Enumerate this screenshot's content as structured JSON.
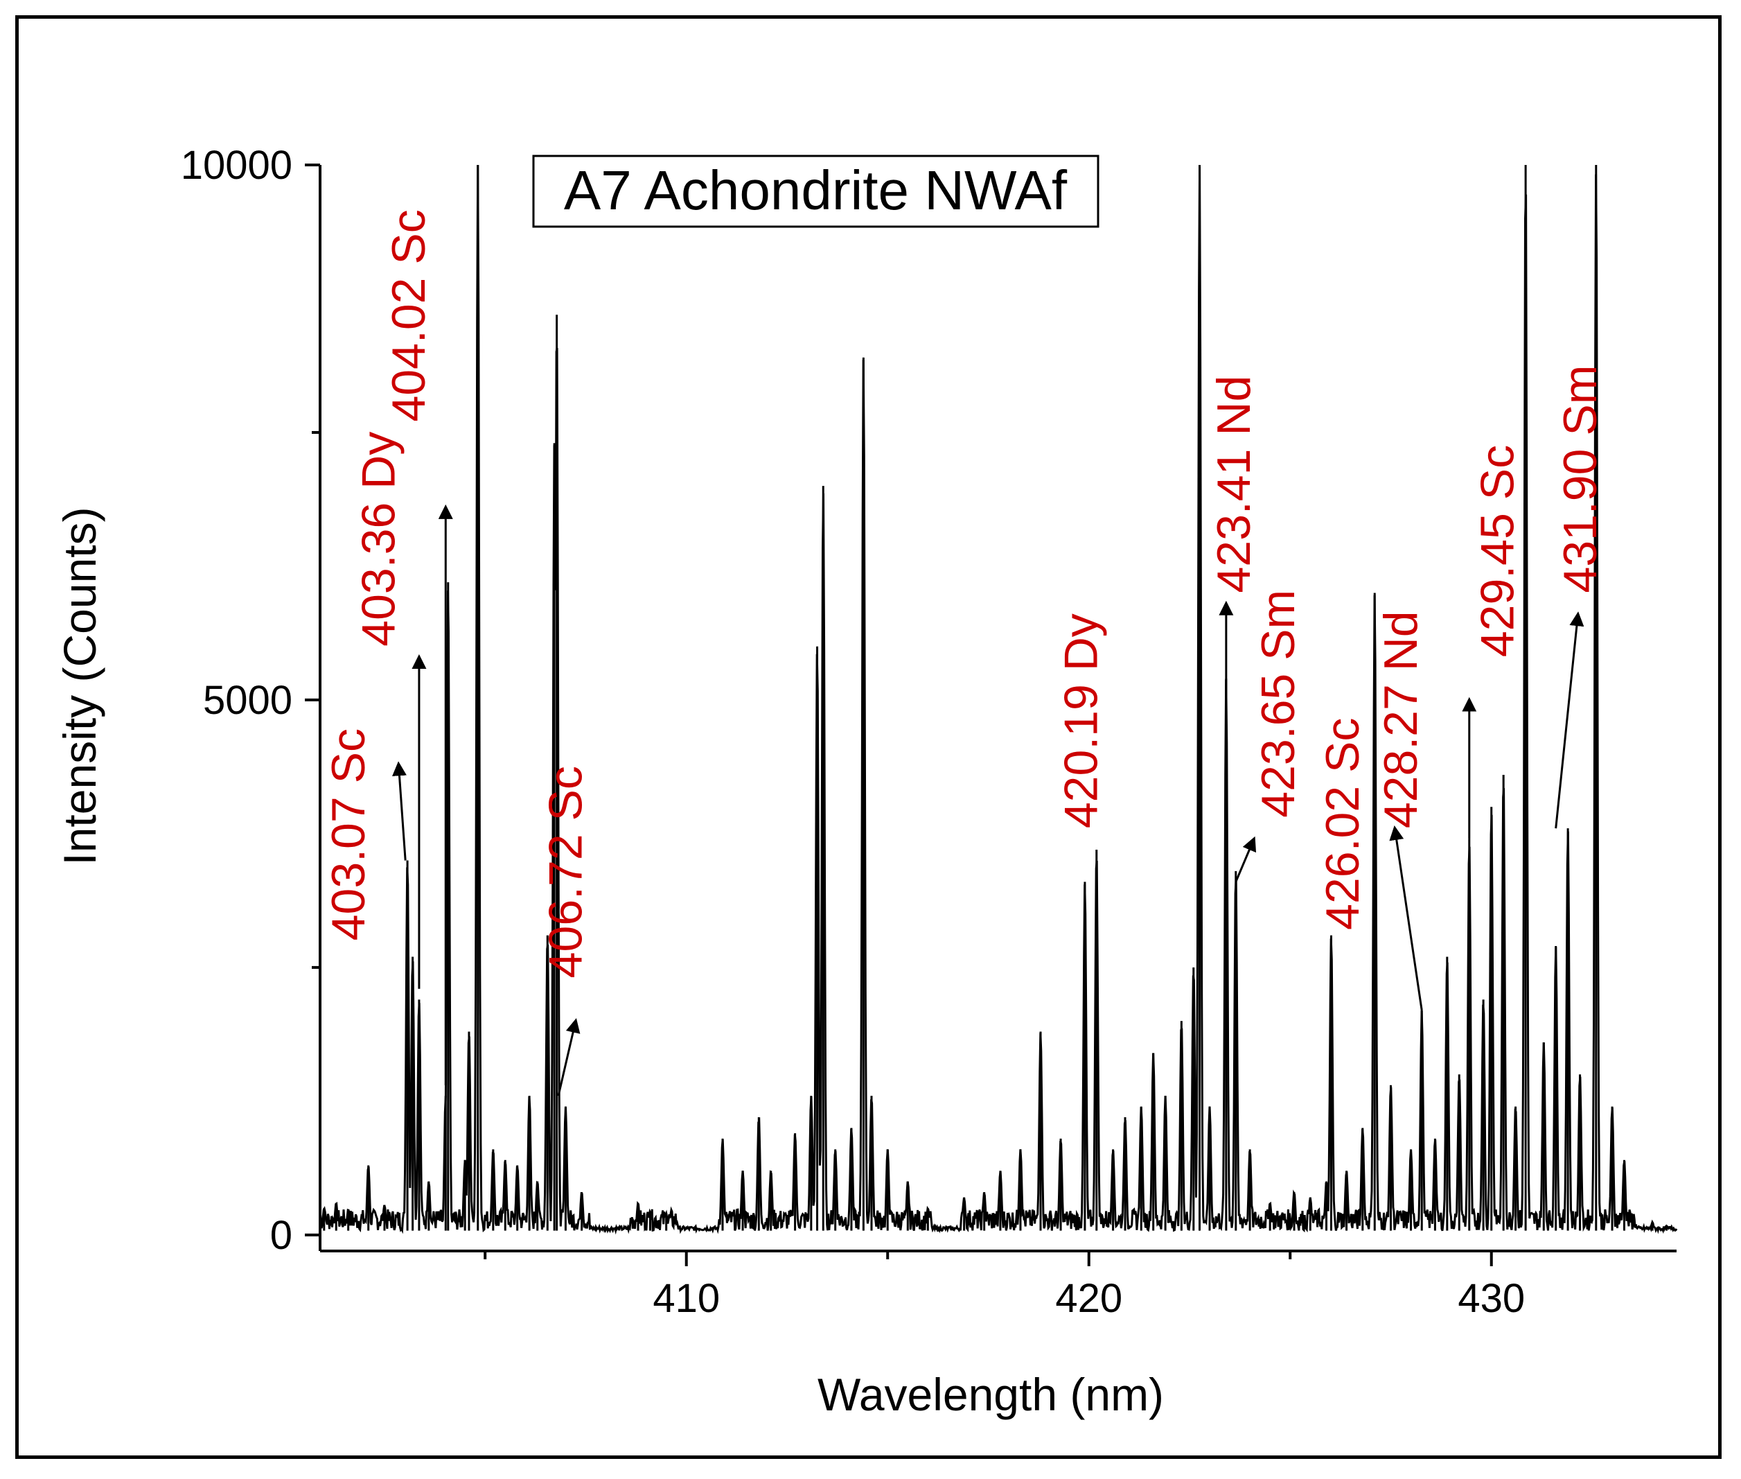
{
  "chart_data": {
    "type": "line",
    "title": "A7 Achondrite NWAf",
    "xlabel": "Wavelength (nm)",
    "ylabel": "Intensity (Counts)",
    "xlim": [
      400.9,
      434.6
    ],
    "ylim": [
      -150,
      10000
    ],
    "xticks": [
      410,
      420,
      430
    ],
    "xtick_labels": [
      "410",
      "420",
      "430"
    ],
    "yticks": [
      0,
      5000,
      10000
    ],
    "ytick_labels": [
      "0",
      "5000",
      "10000"
    ],
    "y_minor_ticks": [
      2500,
      7500
    ],
    "x_minor_ticks": [
      405,
      415,
      425
    ],
    "grid": false,
    "line_color": "#000000",
    "annotation_color": "#cc0000",
    "baseline": 40,
    "noise_floor": 200,
    "peaks": [
      {
        "x": 401.0,
        "y": 250
      },
      {
        "x": 401.3,
        "y": 300
      },
      {
        "x": 401.6,
        "y": 240
      },
      {
        "x": 402.1,
        "y": 650
      },
      {
        "x": 402.5,
        "y": 280
      },
      {
        "x": 403.07,
        "y": 3500
      },
      {
        "x": 403.2,
        "y": 2600
      },
      {
        "x": 403.36,
        "y": 2200
      },
      {
        "x": 403.6,
        "y": 500
      },
      {
        "x": 404.02,
        "y": 1300
      },
      {
        "x": 404.08,
        "y": 6100
      },
      {
        "x": 404.5,
        "y": 700
      },
      {
        "x": 404.6,
        "y": 1900
      },
      {
        "x": 404.82,
        "y": 10000
      },
      {
        "x": 405.2,
        "y": 800
      },
      {
        "x": 405.5,
        "y": 700
      },
      {
        "x": 405.8,
        "y": 650
      },
      {
        "x": 406.1,
        "y": 1300
      },
      {
        "x": 406.3,
        "y": 500
      },
      {
        "x": 406.55,
        "y": 2800
      },
      {
        "x": 406.72,
        "y": 7400
      },
      {
        "x": 406.78,
        "y": 8600
      },
      {
        "x": 407.0,
        "y": 1200
      },
      {
        "x": 407.4,
        "y": 400
      },
      {
        "x": 408.8,
        "y": 300
      },
      {
        "x": 409.1,
        "y": 220
      },
      {
        "x": 409.5,
        "y": 200
      },
      {
        "x": 410.9,
        "y": 900
      },
      {
        "x": 411.4,
        "y": 600
      },
      {
        "x": 411.8,
        "y": 1100
      },
      {
        "x": 412.1,
        "y": 600
      },
      {
        "x": 412.7,
        "y": 950
      },
      {
        "x": 413.1,
        "y": 1300
      },
      {
        "x": 413.25,
        "y": 5500
      },
      {
        "x": 413.4,
        "y": 7000
      },
      {
        "x": 413.7,
        "y": 800
      },
      {
        "x": 414.1,
        "y": 1000
      },
      {
        "x": 414.4,
        "y": 8200
      },
      {
        "x": 414.6,
        "y": 1300
      },
      {
        "x": 415.0,
        "y": 800
      },
      {
        "x": 415.5,
        "y": 500
      },
      {
        "x": 416.0,
        "y": 250
      },
      {
        "x": 416.9,
        "y": 350
      },
      {
        "x": 417.4,
        "y": 400
      },
      {
        "x": 417.8,
        "y": 600
      },
      {
        "x": 418.3,
        "y": 800
      },
      {
        "x": 418.8,
        "y": 1900
      },
      {
        "x": 419.3,
        "y": 900
      },
      {
        "x": 419.9,
        "y": 3300
      },
      {
        "x": 420.19,
        "y": 3600
      },
      {
        "x": 420.6,
        "y": 800
      },
      {
        "x": 420.9,
        "y": 1100
      },
      {
        "x": 421.3,
        "y": 1200
      },
      {
        "x": 421.6,
        "y": 1700
      },
      {
        "x": 421.9,
        "y": 1300
      },
      {
        "x": 422.3,
        "y": 2000
      },
      {
        "x": 422.6,
        "y": 2500
      },
      {
        "x": 422.75,
        "y": 10000
      },
      {
        "x": 423.0,
        "y": 1200
      },
      {
        "x": 423.41,
        "y": 5200
      },
      {
        "x": 423.65,
        "y": 3400
      },
      {
        "x": 424.0,
        "y": 800
      },
      {
        "x": 424.5,
        "y": 300
      },
      {
        "x": 425.1,
        "y": 400
      },
      {
        "x": 425.5,
        "y": 350
      },
      {
        "x": 425.9,
        "y": 500
      },
      {
        "x": 426.02,
        "y": 2800
      },
      {
        "x": 426.4,
        "y": 600
      },
      {
        "x": 426.8,
        "y": 1000
      },
      {
        "x": 427.1,
        "y": 6000
      },
      {
        "x": 427.5,
        "y": 1400
      },
      {
        "x": 428.0,
        "y": 800
      },
      {
        "x": 428.27,
        "y": 2100
      },
      {
        "x": 428.6,
        "y": 900
      },
      {
        "x": 428.9,
        "y": 2600
      },
      {
        "x": 429.2,
        "y": 1500
      },
      {
        "x": 429.45,
        "y": 3700
      },
      {
        "x": 429.8,
        "y": 2200
      },
      {
        "x": 430.0,
        "y": 4000
      },
      {
        "x": 430.3,
        "y": 4300
      },
      {
        "x": 430.6,
        "y": 1200
      },
      {
        "x": 430.85,
        "y": 10000
      },
      {
        "x": 431.3,
        "y": 1800
      },
      {
        "x": 431.6,
        "y": 2700
      },
      {
        "x": 431.9,
        "y": 3800
      },
      {
        "x": 432.2,
        "y": 1500
      },
      {
        "x": 432.6,
        "y": 10000
      },
      {
        "x": 433.0,
        "y": 1200
      },
      {
        "x": 433.3,
        "y": 700
      },
      {
        "x": 434.0,
        "y": 120
      }
    ],
    "annotations": [
      {
        "label": "403.07 Sc",
        "x": 403.07,
        "text_x": 402.0,
        "text_y": 2750,
        "arrow_tail": [
          403.02,
          3500
        ],
        "arrow_head": [
          402.85,
          4400
        ]
      },
      {
        "label": "403.36 Dy",
        "x": 403.36,
        "text_x": 402.75,
        "text_y": 5500,
        "arrow_tail": [
          403.36,
          2300
        ],
        "arrow_head": [
          403.36,
          5400
        ]
      },
      {
        "label": "404.02 Sc",
        "x": 404.02,
        "text_x": 403.5,
        "text_y": 7600,
        "arrow_tail": [
          404.02,
          1400
        ],
        "arrow_head": [
          404.02,
          6800
        ]
      },
      {
        "label": "406.72 Sc",
        "x": 406.72,
        "text_x": 407.4,
        "text_y": 2400,
        "arrow_tail": [
          406.82,
          1300
        ],
        "arrow_head": [
          407.25,
          2000
        ]
      },
      {
        "label": "420.19 Dy",
        "x": 420.19,
        "text_x": 420.2,
        "text_y": 3800,
        "arrow_tail": null,
        "arrow_head": null
      },
      {
        "label": "423.41 Nd",
        "x": 423.41,
        "text_x": 424.0,
        "text_y": 6000,
        "arrow_tail": [
          423.41,
          3500
        ],
        "arrow_head": [
          423.41,
          5900
        ]
      },
      {
        "label": "423.65 Sm",
        "x": 423.65,
        "text_x": 425.1,
        "text_y": 3900,
        "arrow_tail": [
          423.65,
          3300
        ],
        "arrow_head": [
          424.1,
          3700
        ]
      },
      {
        "label": "426.02 Sc",
        "x": 426.02,
        "text_x": 426.7,
        "text_y": 2850,
        "arrow_tail": null,
        "arrow_head": null
      },
      {
        "label": "428.27 Nd",
        "x": 428.27,
        "text_x": 428.15,
        "text_y": 3800,
        "arrow_tail": [
          428.27,
          2100
        ],
        "arrow_head": [
          427.6,
          3800
        ]
      },
      {
        "label": "429.45 Sc",
        "x": 429.45,
        "text_x": 430.55,
        "text_y": 5400,
        "arrow_tail": [
          429.45,
          3700
        ],
        "arrow_head": [
          429.45,
          5000
        ]
      },
      {
        "label": "431.90 Sm",
        "x": 431.9,
        "text_x": 432.6,
        "text_y": 6000,
        "arrow_tail": [
          431.6,
          3800
        ],
        "arrow_head": [
          432.15,
          5800
        ]
      }
    ]
  }
}
